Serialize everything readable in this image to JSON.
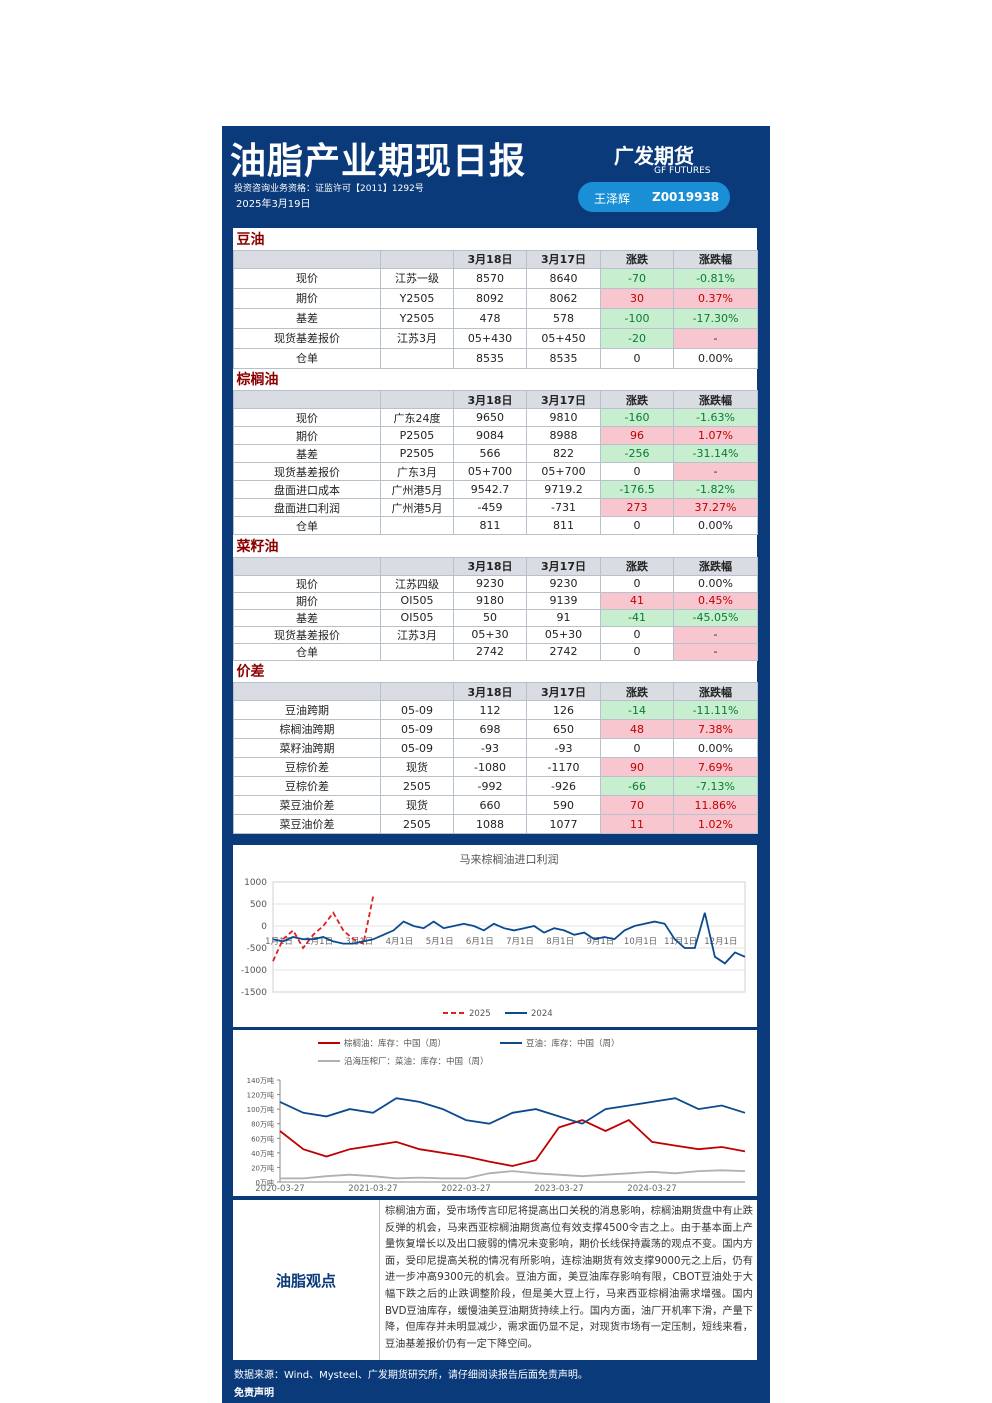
{
  "header": {
    "title": "油脂产业期现日报",
    "logo": "广发期货",
    "logo_en": "GF FUTURES",
    "license": "投资咨询业务资格：证监许可【2011】1292号",
    "date": "2025年3月19日",
    "analyst": "王泽辉",
    "analyst_id": "Z0019938"
  },
  "sections": [
    {
      "title": "豆油",
      "columns": [
        "3月18日",
        "3月17日",
        "涨跌",
        "涨跌幅"
      ],
      "rows": [
        [
          "现价",
          "江苏一级",
          "8570",
          "8640",
          "-70",
          "-0.81%"
        ],
        [
          "期价",
          "Y2505",
          "8092",
          "8062",
          "30",
          "0.37%"
        ],
        [
          "基差",
          "Y2505",
          "478",
          "578",
          "-100",
          "-17.30%"
        ],
        [
          "现货基差报价",
          "江苏3月",
          "05+430",
          "05+450",
          "-20",
          "-"
        ],
        [
          "仓单",
          null,
          "8535",
          "8535",
          "0",
          "0.00%"
        ]
      ]
    },
    {
      "title": "棕榈油",
      "columns": [
        "3月18日",
        "3月17日",
        "涨跌",
        "涨跌幅"
      ],
      "rows": [
        [
          "现价",
          "广东24度",
          "9650",
          "9810",
          "-160",
          "-1.63%"
        ],
        [
          "期价",
          "P2505",
          "9084",
          "8988",
          "96",
          "1.07%"
        ],
        [
          "基差",
          "P2505",
          "566",
          "822",
          "-256",
          "-31.14%"
        ],
        [
          "现货基差报价",
          "广东3月",
          "05+700",
          "05+700",
          "0",
          "-"
        ],
        [
          "盘面进口成本",
          "广州港5月",
          "9542.7",
          "9719.2",
          "-176.5",
          "-1.82%"
        ],
        [
          "盘面进口利润",
          "广州港5月",
          "-459",
          "-731",
          "273",
          "37.27%"
        ],
        [
          "仓单",
          null,
          "811",
          "811",
          "0",
          "0.00%"
        ]
      ]
    },
    {
      "title": "菜籽油",
      "columns": [
        "3月18日",
        "3月17日",
        "涨跌",
        "涨跌幅"
      ],
      "rows": [
        [
          "现价",
          "江苏四级",
          "9230",
          "9230",
          "0",
          "0.00%"
        ],
        [
          "期价",
          "OI505",
          "9180",
          "9139",
          "41",
          "0.45%"
        ],
        [
          "基差",
          "OI505",
          "50",
          "91",
          "-41",
          "-45.05%"
        ],
        [
          "现货基差报价",
          "江苏3月",
          "05+30",
          "05+30",
          "0",
          "-"
        ],
        [
          "仓单",
          null,
          "2742",
          "2742",
          "0",
          "-"
        ]
      ]
    },
    {
      "title": "价差",
      "columns": [
        "3月18日",
        "3月17日",
        "涨跌",
        "涨跌幅"
      ],
      "rows": [
        [
          "豆油跨期",
          "05-09",
          "112",
          "126",
          "-14",
          "-11.11%"
        ],
        [
          "棕榈油跨期",
          "05-09",
          "698",
          "650",
          "48",
          "7.38%"
        ],
        [
          "菜籽油跨期",
          "05-09",
          "-93",
          "-93",
          "0",
          "0.00%"
        ],
        [
          "豆棕价差",
          "现货",
          "-1080",
          "-1170",
          "90",
          "7.69%"
        ],
        [
          "豆棕价差",
          "2505",
          "-992",
          "-926",
          "-66",
          "-7.13%"
        ],
        [
          "菜豆油价差",
          "现货",
          "660",
          "590",
          "70",
          "11.86%"
        ],
        [
          "菜豆油价差",
          "2505",
          "1088",
          "1077",
          "11",
          "1.02%"
        ]
      ]
    }
  ],
  "chart_data": [
    {
      "type": "line",
      "title": "马来棕榈油进口利润",
      "categories": [
        "1月1日",
        null,
        null,
        null,
        "2月1日",
        null,
        null,
        null,
        "3月1日",
        null,
        null,
        null,
        "4月1日",
        null,
        null,
        null,
        "5月1日",
        null,
        null,
        null,
        "6月1日",
        null,
        null,
        null,
        "7月1日",
        null,
        null,
        null,
        "8月1日",
        null,
        null,
        null,
        "9月1日",
        null,
        null,
        null,
        "10月1日",
        null,
        null,
        null,
        "11月1日",
        null,
        null,
        null,
        "12月1日",
        null,
        null,
        null
      ],
      "series": [
        {
          "name": "2025",
          "color": "#e02020",
          "dashed": true,
          "values": [
            -800,
            -300,
            -100,
            -500,
            -200,
            0,
            300,
            -100,
            -300,
            -400,
            700,
            null,
            null,
            null,
            null,
            null,
            null,
            null,
            null,
            null,
            null,
            null,
            null,
            null,
            null,
            null,
            null,
            null,
            null,
            null,
            null,
            null,
            null,
            null,
            null,
            null,
            null,
            null,
            null,
            null,
            null,
            null,
            null,
            null,
            null,
            null,
            null,
            null
          ]
        },
        {
          "name": "2024",
          "color": "#0b4a8f",
          "dashed": false,
          "values": [
            -300,
            -350,
            -250,
            -300,
            -300,
            -250,
            -350,
            -400,
            -400,
            -350,
            -300,
            -200,
            -100,
            100,
            0,
            -50,
            100,
            -50,
            0,
            50,
            0,
            -100,
            50,
            -50,
            -100,
            -50,
            0,
            -150,
            -50,
            -100,
            -200,
            -150,
            -300,
            -250,
            -300,
            -100,
            0,
            50,
            100,
            50,
            -300,
            -500,
            -500,
            300,
            -700,
            -850,
            -600,
            -700
          ]
        }
      ],
      "ylim": [
        -1500,
        1000
      ],
      "yticks": [
        1000,
        500,
        0,
        -500,
        -1000,
        -1500
      ],
      "grid": true
    },
    {
      "type": "line",
      "categories": [
        "2020-03-27",
        null,
        null,
        null,
        "2021-03-27",
        null,
        null,
        null,
        "2022-03-27",
        null,
        null,
        null,
        "2023-03-27",
        null,
        null,
        null,
        "2024-03-27",
        null,
        null,
        null,
        null
      ],
      "series": [
        {
          "name": "棕榈油：库存：中国（周）",
          "color": "#c00000",
          "values": [
            70,
            45,
            35,
            45,
            50,
            55,
            45,
            40,
            35,
            28,
            22,
            30,
            75,
            85,
            70,
            85,
            55,
            50,
            45,
            48,
            42
          ]
        },
        {
          "name": "豆油：库存：中国（周）",
          "color": "#0b4a8f",
          "values": [
            110,
            95,
            90,
            100,
            95,
            115,
            110,
            100,
            85,
            80,
            95,
            100,
            90,
            80,
            100,
            105,
            110,
            115,
            100,
            105,
            95
          ]
        },
        {
          "name": "沿海压榨厂：菜油：库存：中国（周）",
          "color": "#b0b0b0",
          "values": [
            5,
            5,
            8,
            10,
            8,
            5,
            6,
            5,
            5,
            12,
            15,
            12,
            10,
            8,
            10,
            12,
            14,
            12,
            15,
            16,
            15
          ]
        }
      ],
      "ylim": [
        0,
        140
      ],
      "yticks": [
        {
          "value": 0,
          "label": "0万吨"
        },
        {
          "value": 20,
          "label": "20万吨"
        },
        {
          "value": 40,
          "label": "40万吨"
        },
        {
          "value": 60,
          "label": "60万吨"
        },
        {
          "value": 80,
          "label": "80万吨"
        },
        {
          "value": 100,
          "label": "100万吨"
        },
        {
          "value": 120,
          "label": "120万吨"
        },
        {
          "value": 140,
          "label": "140万吨"
        }
      ],
      "grid": false
    }
  ],
  "opinion": {
    "label": "油脂观点",
    "text": "棕榈油方面，受市场传言印尼将提高出口关税的消息影响，棕榈油期货盘中有止跌反弹的机会，马来西亚棕榈油期货高位有效支撑4500令吉之上。由于基本面上产量恢复增长以及出口疲弱的情况未变影响，期价长线保持震荡的观点不变。国内方面，受印尼提高关税的情况有所影响，连棕油期货有效支撑9000元之上后，仍有进一步冲高9300元的机会。豆油方面，美豆油库存影响有限，CBOT豆油处于大幅下跌之后的止跌调整阶段，但是美大豆上行，马来西亚棕榈油需求增强。国内BVD豆油库存，缓慢油美豆油期货持续上行。国内方面，油厂开机率下滑，产量下降，但库存并未明显减少，需求面仍显不足，对现货市场有一定压制，短线来看，豆油基差报价仍有一定下降空间。"
  },
  "footer": {
    "source": "数据来源：Wind、Mysteel、广发期货研究所，请仔细阅读报告后面免责声明。",
    "disclaimer": "免责声明"
  }
}
